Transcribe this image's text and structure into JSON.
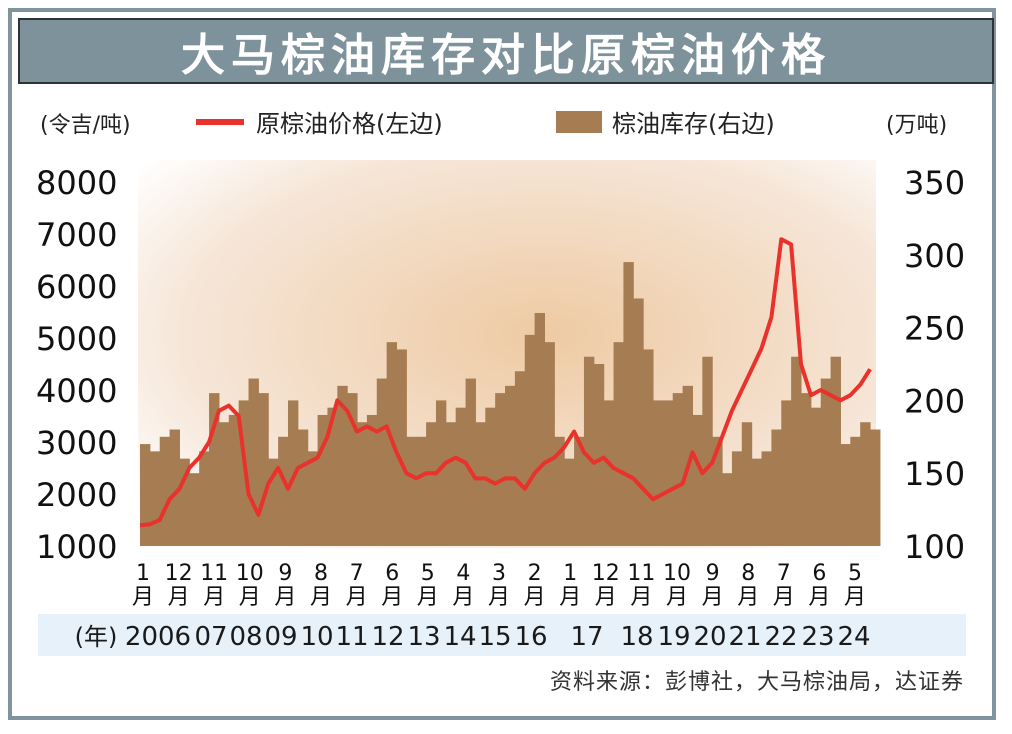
{
  "title": "大马棕油库存对比原棕油价格",
  "left_unit": "(令吉/吨)",
  "right_unit": "(万吨)",
  "legend": {
    "price_label": "原棕油价格(左边)",
    "stock_label": "棕油库存(右边)",
    "price_color": "#e8322b",
    "stock_color": "#a67c52"
  },
  "year_prefix": "(年)",
  "source": "资料来源：彭博社，大马棕油局，达证券",
  "chart_data": {
    "type": "line",
    "left_axis": {
      "label": "(令吉/吨)",
      "range": [
        1000,
        8000
      ],
      "ticks": [
        "8000",
        "7000",
        "6000",
        "5000",
        "4000",
        "3000",
        "2000",
        "1000"
      ]
    },
    "right_axis": {
      "label": "(万吨)",
      "range": [
        100,
        350
      ],
      "ticks": [
        "350",
        "300",
        "250",
        "200",
        "150",
        "100"
      ]
    },
    "month_ticks": [
      "1月",
      "12月",
      "11月",
      "10月",
      "9月",
      "8月",
      "7月",
      "6月",
      "5月",
      "4月",
      "3月",
      "2月",
      "1月",
      "12月",
      "11月",
      "10月",
      "9月",
      "8月",
      "7月",
      "6月",
      "5月"
    ],
    "year_labels": [
      "2006",
      "07",
      "08",
      "09",
      "10",
      "11",
      "12",
      "13",
      "14",
      "15",
      "16",
      "17",
      "18",
      "19",
      "20",
      "21",
      "22",
      "23",
      "24"
    ],
    "x": [
      2006.0,
      2006.25,
      2006.5,
      2006.75,
      2007.0,
      2007.25,
      2007.5,
      2007.75,
      2008.0,
      2008.25,
      2008.5,
      2008.75,
      2009.0,
      2009.25,
      2009.5,
      2009.75,
      2010.0,
      2010.25,
      2010.5,
      2010.75,
      2011.0,
      2011.25,
      2011.5,
      2011.75,
      2012.0,
      2012.25,
      2012.5,
      2012.75,
      2013.0,
      2013.25,
      2013.5,
      2013.75,
      2014.0,
      2014.25,
      2014.5,
      2014.75,
      2015.0,
      2015.25,
      2015.5,
      2015.75,
      2016.0,
      2016.25,
      2016.5,
      2016.75,
      2017.0,
      2017.25,
      2017.5,
      2017.75,
      2018.0,
      2018.25,
      2018.5,
      2018.75,
      2019.0,
      2019.25,
      2019.5,
      2019.75,
      2020.0,
      2020.25,
      2020.5,
      2020.75,
      2021.0,
      2021.25,
      2021.5,
      2021.75,
      2022.0,
      2022.25,
      2022.5,
      2022.75,
      2023.0,
      2023.25,
      2023.5,
      2023.75,
      2024.0,
      2024.25,
      2024.5
    ],
    "series": [
      {
        "name": "原棕油价格(左边)",
        "axis": "left",
        "values": [
          1400,
          1420,
          1500,
          1900,
          2100,
          2500,
          2700,
          3000,
          3600,
          3700,
          3500,
          2000,
          1600,
          2200,
          2500,
          2100,
          2500,
          2600,
          2700,
          3100,
          3800,
          3600,
          3200,
          3300,
          3200,
          3300,
          2800,
          2400,
          2300,
          2400,
          2400,
          2600,
          2700,
          2600,
          2300,
          2300,
          2200,
          2300,
          2300,
          2100,
          2400,
          2600,
          2700,
          2900,
          3200,
          2800,
          2600,
          2700,
          2500,
          2400,
          2300,
          2100,
          1900,
          2000,
          2100,
          2200,
          2800,
          2400,
          2600,
          3100,
          3600,
          4000,
          4400,
          4800,
          5400,
          6900,
          6800,
          4500,
          3900,
          4000,
          3900,
          3800,
          3900,
          4100,
          4400
        ]
      },
      {
        "name": "棕油库存(右边)",
        "axis": "right",
        "values": [
          170,
          165,
          175,
          180,
          160,
          150,
          165,
          205,
          185,
          190,
          200,
          215,
          205,
          160,
          175,
          200,
          180,
          165,
          190,
          195,
          210,
          205,
          185,
          190,
          215,
          240,
          235,
          175,
          175,
          185,
          200,
          185,
          195,
          215,
          185,
          195,
          205,
          210,
          220,
          245,
          260,
          240,
          175,
          160,
          175,
          230,
          225,
          200,
          240,
          295,
          270,
          235,
          200,
          200,
          205,
          210,
          190,
          230,
          175,
          150,
          165,
          185,
          160,
          165,
          180,
          200,
          230,
          205,
          195,
          215,
          230,
          170,
          175,
          185,
          180
        ]
      }
    ]
  }
}
